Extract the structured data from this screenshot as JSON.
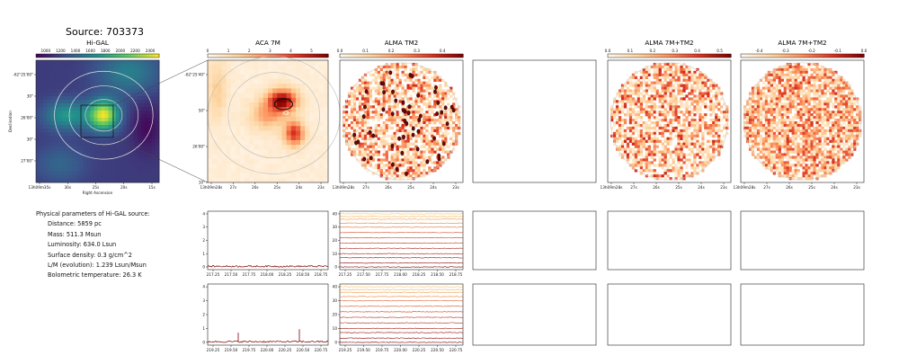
{
  "figure": {
    "source_title": "Source: 703373"
  },
  "info": {
    "heading": "Physical parameters of Hi-GAL source:",
    "lines": [
      "Distance: 5859 pc",
      "Mass: 511.3 Msun",
      "Luminosity: 634.0 Lsun",
      "Surface density: 0.3 g/cm^2",
      "L/M (evolution): 1.239 Lsun/Msun",
      "Bolometric temperature: 26.3 K"
    ]
  },
  "chart_data": [
    {
      "type": "heatmap",
      "panel": "higal",
      "title": "Hi-GAL",
      "colormap": "viridis",
      "colorbar_ticks": [
        "1000",
        "1200",
        "1400",
        "1600",
        "1800",
        "2000",
        "2200",
        "2400"
      ],
      "colorbar_range": [
        870,
        2520
      ],
      "xlabel": "Right Ascension",
      "ylabel": "Declination",
      "x_ticks": [
        "13h09m35s",
        "30s",
        "25s",
        "20s",
        "15s"
      ],
      "y_ticks": [
        "-62°25'00\"",
        "30\"",
        "26'00\"",
        "30\"",
        "27'00\""
      ],
      "peak": {
        "x": 0.55,
        "y": 0.45
      }
    },
    {
      "type": "heatmap",
      "panel": "aca7m",
      "title": "ACA 7M",
      "colormap": "OrRd",
      "colorbar_ticks": [
        "0",
        "1",
        "2",
        "3",
        "4",
        "5"
      ],
      "colorbar_range": [
        0,
        5.8
      ],
      "x_ticks": [
        "13h09m28s",
        "27s",
        "26s",
        "25s",
        "24s",
        "23s"
      ],
      "y_ticks": [
        "-62°25'40\"",
        "50\"",
        "26'00\"",
        "10\""
      ]
    },
    {
      "type": "heatmap",
      "panel": "almatm2",
      "title": "ALMA TM2",
      "colormap": "OrRd",
      "colorbar_ticks": [
        "0.0",
        "0.1",
        "0.2",
        "0.3",
        "0.4"
      ],
      "colorbar_range": [
        0,
        0.48
      ],
      "x_ticks": [
        "13h09m28s",
        "27s",
        "26s",
        "25s",
        "24s",
        "23s"
      ]
    },
    {
      "type": "heatmap",
      "panel": "alma7mtm2a",
      "title": "ALMA 7M+TM2",
      "colormap": "OrRd",
      "colorbar_ticks": [
        "0.0",
        "0.1",
        "0.2",
        "0.3",
        "0.4",
        "0.5"
      ],
      "colorbar_range": [
        0,
        0.55
      ],
      "x_ticks": [
        "13h09m28s",
        "27s",
        "26s",
        "25s",
        "24s",
        "23s"
      ]
    },
    {
      "type": "heatmap",
      "panel": "alma7mtm2b",
      "title": "ALMA 7M+TM2",
      "colormap": "OrRd",
      "colorbar_ticks": [
        "-0.4",
        "-0.3",
        "-0.2",
        "-0.1",
        "0.0"
      ],
      "colorbar_range": [
        -0.47,
        0.0
      ],
      "x_ticks": [
        "13h09m28s",
        "27s",
        "26s",
        "25s",
        "24s",
        "23s"
      ]
    },
    {
      "type": "line",
      "panel": "spec_aca_1",
      "x_ticks": [
        "217.25",
        "217.50",
        "217.75",
        "218.00",
        "218.25",
        "218.50",
        "218.75"
      ],
      "y_ticks": [
        "0",
        "1",
        "2",
        "3",
        "4"
      ],
      "ylim": [
        -0.2,
        4.2
      ],
      "baseline": 0.05
    },
    {
      "type": "line",
      "panel": "spec_aca_2",
      "x_ticks": [
        "219.25",
        "219.50",
        "219.75",
        "220.00",
        "220.25",
        "220.50",
        "220.75"
      ],
      "y_ticks": [
        "0",
        "1",
        "2",
        "3",
        "4"
      ],
      "ylim": [
        -0.2,
        4.2
      ],
      "baseline": 0.05,
      "lines": [
        {
          "x": 219.6,
          "y": 0.7
        },
        {
          "x": 220.45,
          "y": 0.95
        }
      ]
    },
    {
      "type": "line",
      "panel": "spec_tm2_1",
      "x_ticks": [
        "217.25",
        "217.50",
        "217.75",
        "218.00",
        "218.25",
        "218.50",
        "218.75"
      ],
      "y_ticks": [
        "0",
        "10",
        "20",
        "30",
        "40"
      ],
      "ylim": [
        -2,
        42
      ],
      "offsets": [
        0,
        3,
        7,
        10,
        14,
        18,
        22,
        26,
        30,
        33,
        36,
        38,
        40
      ]
    },
    {
      "type": "line",
      "panel": "spec_tm2_2",
      "x_ticks": [
        "219.25",
        "219.50",
        "219.75",
        "220.00",
        "220.25",
        "220.50",
        "220.75"
      ],
      "y_ticks": [
        "0",
        "10",
        "20",
        "30",
        "40"
      ],
      "ylim": [
        -2,
        42
      ],
      "offsets": [
        0,
        3,
        7,
        10,
        14,
        18,
        22,
        26,
        30,
        33,
        36,
        38,
        40
      ]
    }
  ]
}
